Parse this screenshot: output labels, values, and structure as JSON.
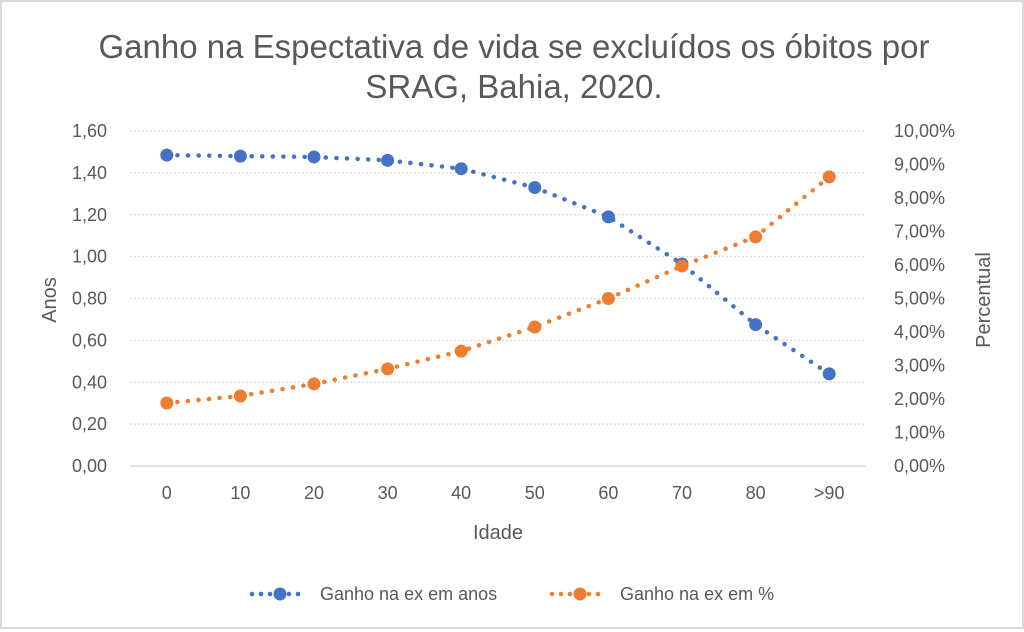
{
  "chart_data": {
    "type": "line",
    "title": [
      "Ganho na Espectativa de vida se excluídos os óbitos por",
      "SRAG, Bahia, 2020."
    ],
    "xlabel": "Idade",
    "ylabel": "Anos",
    "y2label": "Percentual",
    "categories": [
      "0",
      "10",
      "20",
      "30",
      "40",
      "50",
      "60",
      "70",
      "80",
      ">90"
    ],
    "ylim": [
      0,
      1.6
    ],
    "y2lim": [
      0,
      10
    ],
    "y_ticks": [
      "0,00",
      "0,20",
      "0,40",
      "0,60",
      "0,80",
      "1,00",
      "1,20",
      "1,40",
      "1,60"
    ],
    "y2_ticks": [
      "0,00%",
      "1,00%",
      "2,00%",
      "3,00%",
      "4,00%",
      "5,00%",
      "6,00%",
      "7,00%",
      "8,00%",
      "9,00%",
      "10,00%"
    ],
    "grid": true,
    "legend_position": "bottom",
    "series": [
      {
        "name": "Ganho na ex em anos",
        "axis": "left",
        "color": "#4472C4",
        "values": [
          1.485,
          1.48,
          1.476,
          1.46,
          1.42,
          1.33,
          1.19,
          0.965,
          0.675,
          0.44
        ]
      },
      {
        "name": "Ganho na ex em %",
        "axis": "right",
        "color": "#ED7D31",
        "values": [
          1.88,
          2.09,
          2.45,
          2.9,
          3.43,
          4.15,
          5.0,
          5.97,
          6.84,
          8.63
        ]
      }
    ]
  }
}
